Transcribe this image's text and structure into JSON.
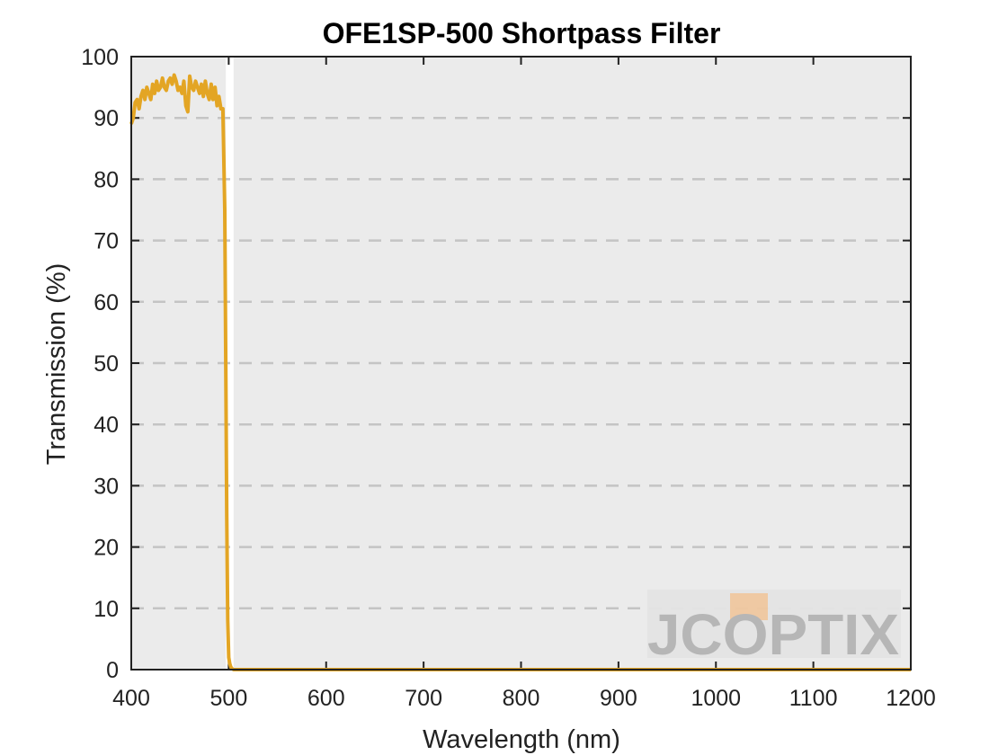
{
  "chart_data": {
    "type": "line",
    "title": "OFE1SP-500 Shortpass Filter",
    "xlabel": "Wavelength (nm)",
    "ylabel": "Transmission (%)",
    "xlim": [
      400,
      1200
    ],
    "ylim": [
      0,
      100
    ],
    "xticks": [
      400,
      500,
      600,
      700,
      800,
      900,
      1000,
      1100,
      1200
    ],
    "yticks": [
      0,
      10,
      20,
      30,
      40,
      50,
      60,
      70,
      80,
      90,
      100
    ],
    "grid": "horizontal-dashed",
    "background": "#ebebeb",
    "stopband_region": [
      505,
      1200
    ],
    "series": [
      {
        "color": "#e3a524",
        "x": [
          400,
          402,
          404,
          406,
          408,
          410,
          412,
          414,
          416,
          418,
          420,
          422,
          424,
          426,
          428,
          430,
          432,
          434,
          436,
          438,
          440,
          442,
          444,
          446,
          448,
          450,
          452,
          454,
          456,
          458,
          460,
          462,
          464,
          466,
          468,
          470,
          472,
          474,
          476,
          478,
          480,
          482,
          484,
          486,
          488,
          490,
          492,
          494,
          496,
          497,
          498,
          499,
          500,
          501,
          502,
          503,
          504,
          505,
          506,
          510,
          550,
          600,
          700,
          800,
          900,
          1000,
          1100,
          1200
        ],
        "y": [
          89,
          90,
          92.5,
          93,
          91.5,
          93.5,
          94.5,
          93,
          95,
          94,
          93,
          95.5,
          94,
          96,
          94.5,
          95,
          96.5,
          95,
          94.5,
          96,
          96.5,
          95.5,
          97,
          96,
          94.5,
          95,
          94,
          96,
          92,
          91,
          96.8,
          95,
          94.5,
          96,
          95,
          94,
          95.5,
          93.5,
          96,
          94,
          93,
          95.5,
          93,
          95,
          92,
          93.5,
          91.5,
          91.5,
          75,
          50,
          25,
          8,
          2,
          1,
          0.5,
          0.2,
          0.1,
          0,
          0,
          0,
          0,
          0,
          0,
          0,
          0,
          0,
          0,
          0
        ]
      }
    ]
  },
  "watermark": {
    "text_left": "JC",
    "text_o": "O",
    "text_right": "PTIX",
    "color": "#b4b4b4",
    "accent_color": "#f0c8a0"
  }
}
